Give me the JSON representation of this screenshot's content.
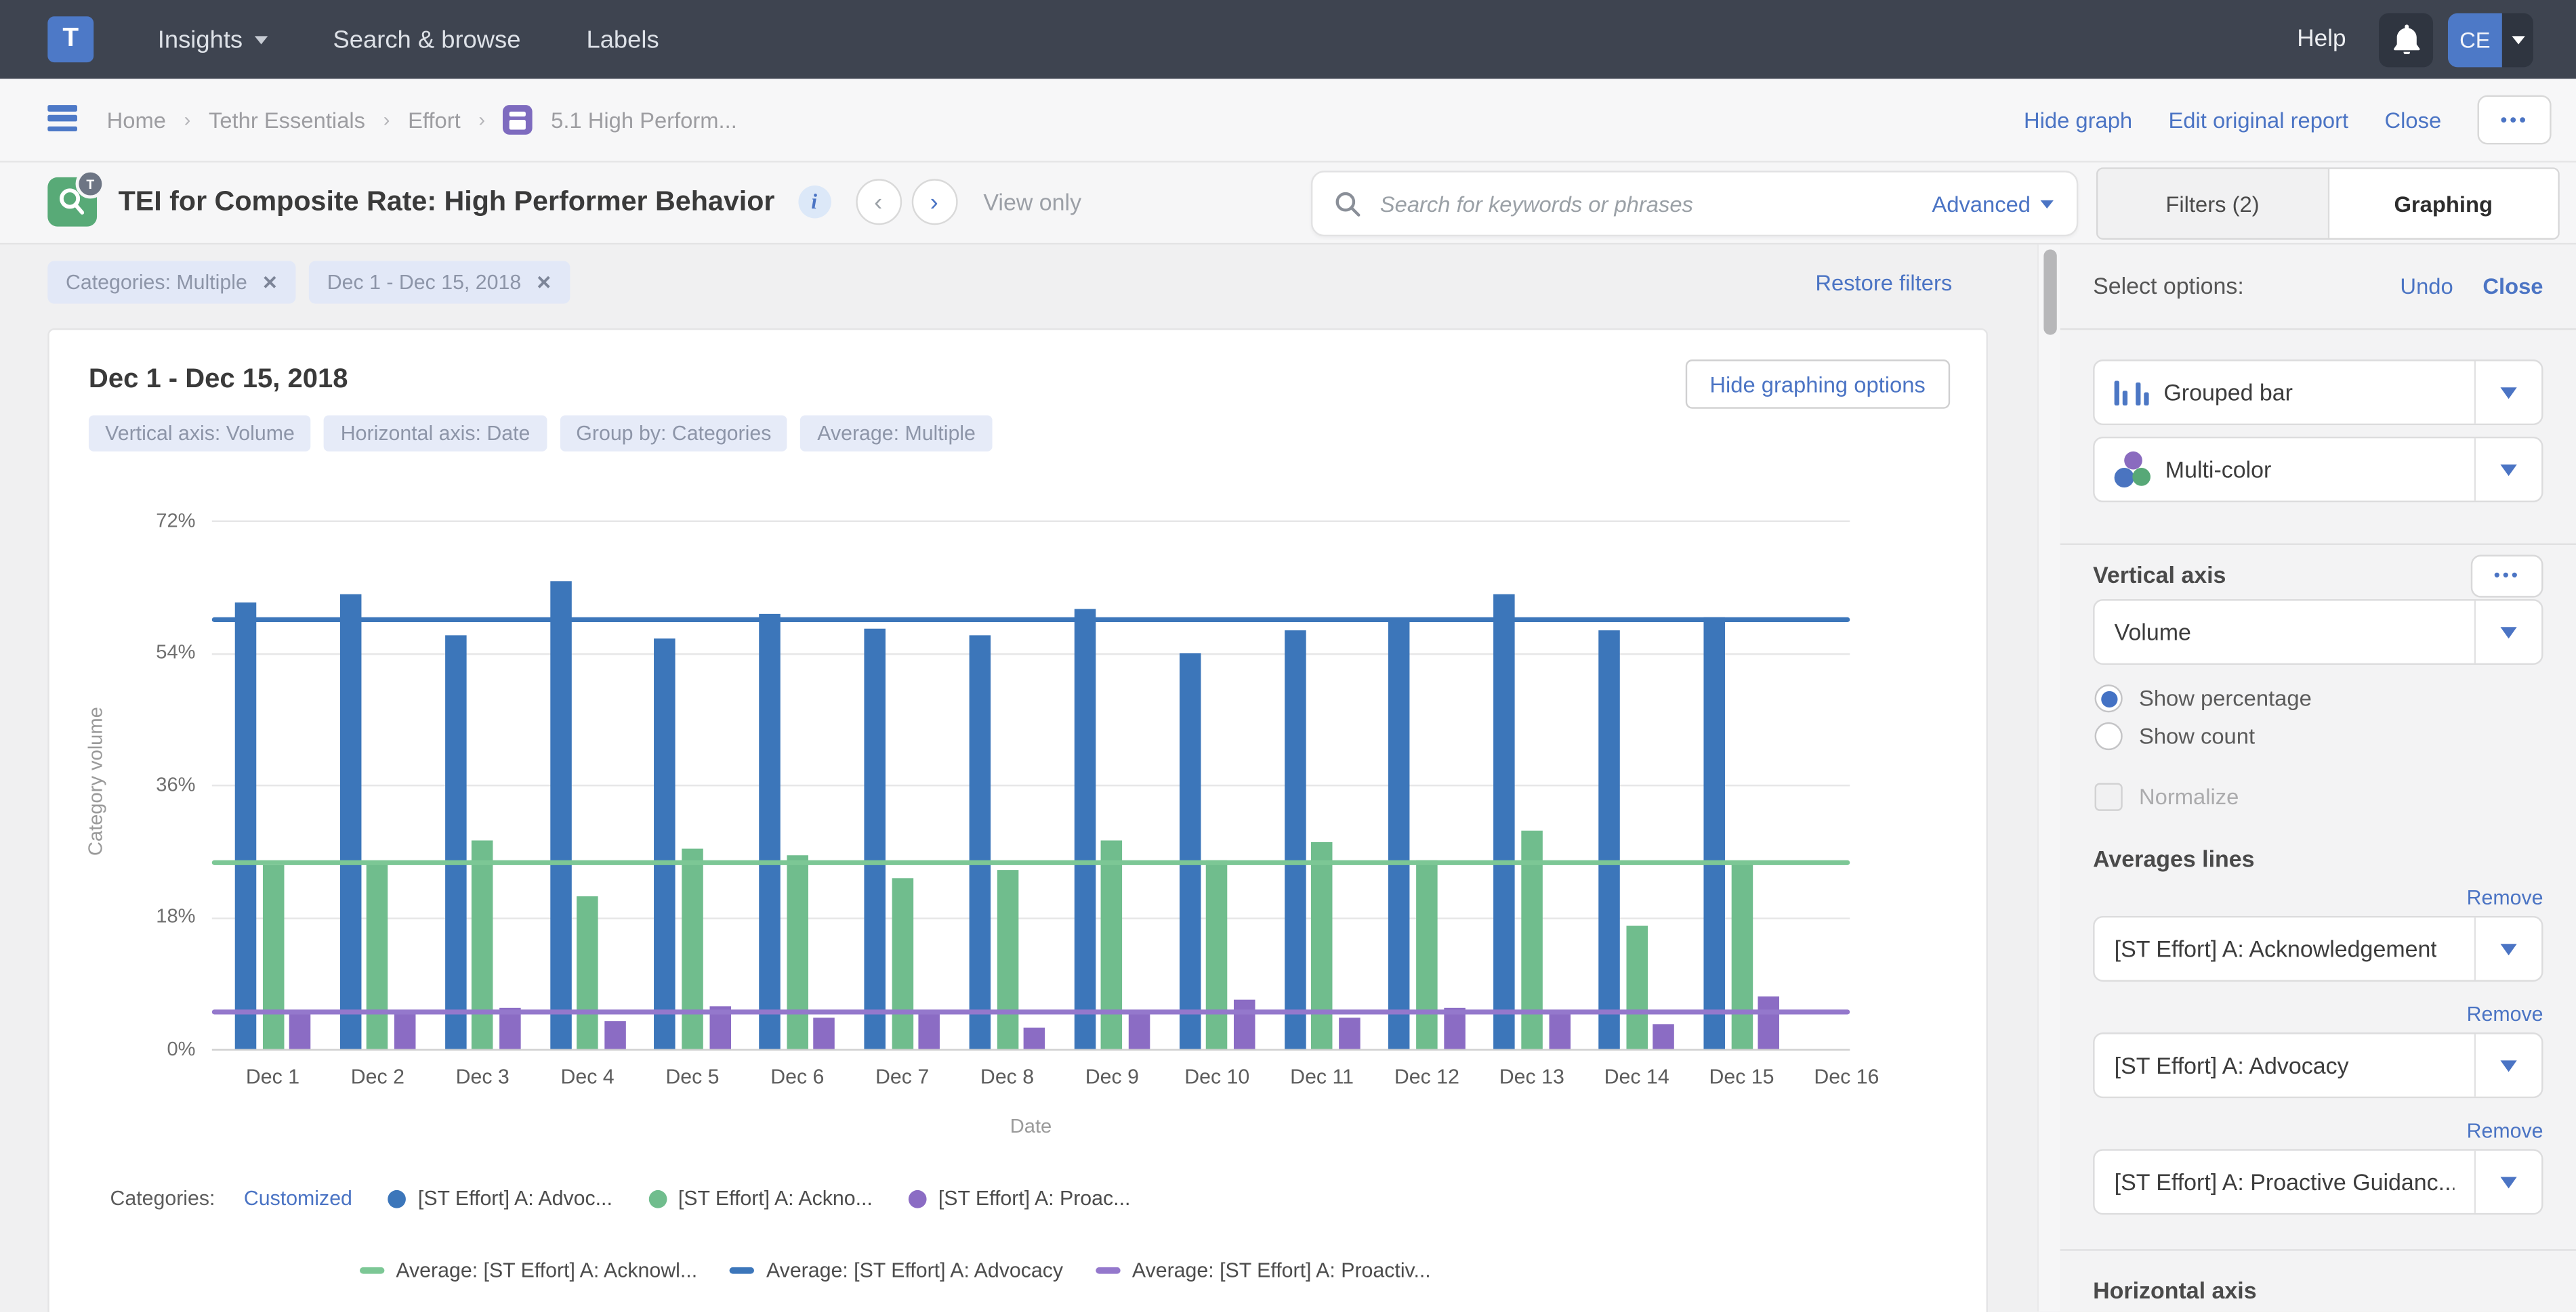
{
  "topnav": {
    "logo": "T",
    "items": [
      {
        "label": "Insights"
      },
      {
        "label": "Search & browse"
      },
      {
        "label": "Labels"
      }
    ],
    "help": "Help",
    "avatar": "CE"
  },
  "breadcrumb": {
    "items": [
      "Home",
      "Tethr Essentials",
      "Effort",
      "5.1 High Perform..."
    ],
    "actions": {
      "hide_graph": "Hide graph",
      "edit_original": "Edit original report",
      "close": "Close",
      "more": "•••"
    }
  },
  "titlebar": {
    "title": "TEI for Composite Rate: High Performer Behavior",
    "info": "i",
    "view_only": "View only",
    "search_placeholder": "Search for keywords or phrases",
    "advanced": "Advanced",
    "tabs": {
      "filters": "Filters (2)",
      "graphing": "Graphing"
    }
  },
  "filter_chips": {
    "chips": [
      "Categories: Multiple",
      "Dec 1 - Dec 15, 2018"
    ],
    "remove_glyph": "✕",
    "restore": "Restore filters"
  },
  "panel": {
    "heading": "Dec 1 - Dec 15, 2018",
    "hide_options": "Hide graphing options",
    "tags": [
      "Vertical axis: Volume",
      "Horizontal axis: Date",
      "Group by: Categories",
      "Average: Multiple"
    ]
  },
  "chart_data": {
    "type": "bar",
    "title": "Dec 1 - Dec 15, 2018",
    "xlabel": "Date",
    "ylabel": "Category volume",
    "ylim": [
      0,
      72
    ],
    "yticks": [
      0,
      18,
      36,
      54,
      72
    ],
    "grid": true,
    "legend_position": "bottom",
    "categories": [
      "Dec 1",
      "Dec 2",
      "Dec 3",
      "Dec 4",
      "Dec 5",
      "Dec 6",
      "Dec 7",
      "Dec 8",
      "Dec 9",
      "Dec 10",
      "Dec 11",
      "Dec 12",
      "Dec 13",
      "Dec 14",
      "Dec 15",
      "Dec 16"
    ],
    "series": [
      {
        "name": "[ST Effort] A: Advocacy",
        "color": "#3c76ba",
        "values": [
          60.9,
          62.0,
          56.4,
          63.7,
          56.0,
          59.2,
          57.3,
          56.3,
          60.0,
          54.0,
          57.0,
          58.2,
          62.0,
          57.0,
          58.8,
          null
        ]
      },
      {
        "name": "[ST Effort] A: Acknowledgement",
        "color": "#70bd8d",
        "values": [
          25.0,
          25.4,
          28.3,
          20.7,
          27.2,
          26.5,
          23.2,
          24.4,
          28.3,
          25.8,
          28.2,
          25.8,
          29.7,
          16.7,
          25.5,
          null
        ]
      },
      {
        "name": "[ST Effort] A: Proactive Guidance",
        "color": "#8b6cc4",
        "values": [
          4.6,
          5.2,
          5.6,
          3.7,
          5.8,
          4.2,
          4.8,
          3.0,
          4.7,
          6.8,
          4.2,
          5.6,
          4.8,
          3.4,
          7.2,
          null
        ]
      }
    ],
    "average_lines": [
      {
        "name": "Average: [ST Effort] A: Advocacy",
        "color": "#3c76ba",
        "value": 58.5
      },
      {
        "name": "Average: [ST Effort] A: Acknowledgement",
        "color": "#7cc795",
        "value": 25.4
      },
      {
        "name": "Average: [ST Effort] A: Proactive Guidance",
        "color": "#9478cc",
        "value": 5.0
      }
    ]
  },
  "legend": {
    "categories_label": "Categories:",
    "customized": "Customized",
    "series": [
      {
        "label": "[ST Effort] A: Advoc...",
        "color": "#3c76ba"
      },
      {
        "label": "[ST Effort] A: Ackno...",
        "color": "#70bd8d"
      },
      {
        "label": "[ST Effort] A: Proac...",
        "color": "#8b6cc4"
      }
    ],
    "averages": [
      {
        "label": "Average: [ST Effort] A: Acknowl...",
        "color": "#7cc795"
      },
      {
        "label": "Average: [ST Effort] A: Advocacy",
        "color": "#3c76ba"
      },
      {
        "label": "Average: [ST Effort] A: Proactiv...",
        "color": "#9478cc"
      }
    ]
  },
  "sidebar": {
    "select_options": "Select options:",
    "undo": "Undo",
    "close": "Close",
    "chart_type": "Grouped bar",
    "color_mode": "Multi-color",
    "vertical_axis": {
      "heading": "Vertical axis",
      "more": "•••",
      "field": "Volume",
      "show_percentage": "Show percentage",
      "show_count": "Show count",
      "normalize": "Normalize"
    },
    "averages_lines": {
      "heading": "Averages lines",
      "remove": "Remove",
      "fields": [
        "[ST Effort] A: Acknowledgement",
        "[ST Effort] A: Advocacy",
        "[ST Effort] A: Proactive Guidanc..."
      ]
    },
    "horizontal_axis": "Horizontal axis"
  }
}
